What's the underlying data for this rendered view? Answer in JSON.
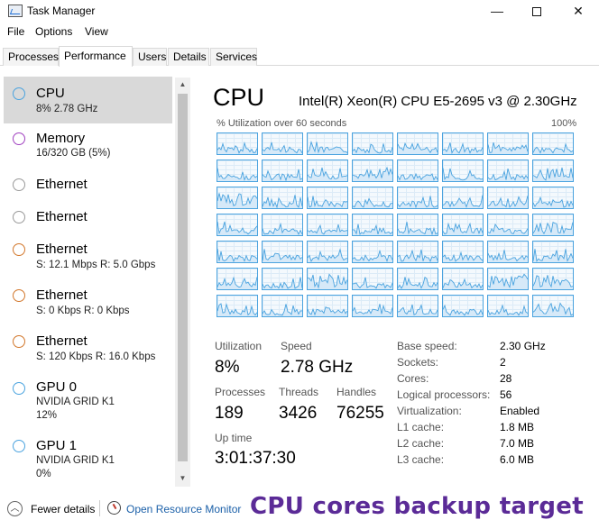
{
  "window": {
    "title": "Task Manager",
    "minimize": "—",
    "close": "✕"
  },
  "menu": [
    "File",
    "Options",
    "View"
  ],
  "tabs": [
    "Processes",
    "Performance",
    "Users",
    "Details",
    "Services"
  ],
  "active_tab": "Performance",
  "sidebar": {
    "items": [
      {
        "name": "CPU",
        "sub": "8% 2.78 GHz",
        "color": "#4aa3df",
        "selected": true
      },
      {
        "name": "Memory",
        "sub": "16/320 GB (5%)",
        "color": "#a040c0"
      },
      {
        "name": "Ethernet",
        "sub": "",
        "color": "#bdbdbd"
      },
      {
        "name": "Ethernet",
        "sub": "",
        "color": "#bdbdbd"
      },
      {
        "name": "Ethernet",
        "sub": "S: 12.1 Mbps  R: 5.0 Gbps",
        "color": "#d2772b"
      },
      {
        "name": "Ethernet",
        "sub": "S: 0 Kbps  R: 0 Kbps",
        "color": "#d2772b"
      },
      {
        "name": "Ethernet",
        "sub": "S: 120 Kbps  R: 16.0 Kbps",
        "color": "#d2772b"
      },
      {
        "name": "GPU 0",
        "sub": "NVIDIA GRID K1",
        "sub2": "12%",
        "color": "#4aa3df"
      },
      {
        "name": "GPU 1",
        "sub": "NVIDIA GRID K1",
        "sub2": "0%",
        "color": "#4aa3df"
      }
    ]
  },
  "cpu": {
    "heading": "CPU",
    "model": "Intel(R) Xeon(R) CPU E5-2695 v3 @ 2.30GHz",
    "graph_label": "% Utilization over 60 seconds",
    "graph_max": "100%",
    "accent_color": "#4aa3df"
  },
  "stats": {
    "utilization_label": "Utilization",
    "utilization": "8%",
    "speed_label": "Speed",
    "speed": "2.78 GHz",
    "processes_label": "Processes",
    "processes": "189",
    "threads_label": "Threads",
    "threads": "3426",
    "handles_label": "Handles",
    "handles": "76255",
    "uptime_label": "Up time",
    "uptime": "3:01:37:30"
  },
  "specs": [
    {
      "label": "Base speed:",
      "value": "2.30 GHz"
    },
    {
      "label": "Sockets:",
      "value": "2"
    },
    {
      "label": "Cores:",
      "value": "28"
    },
    {
      "label": "Logical processors:",
      "value": "56"
    },
    {
      "label": "Virtualization:",
      "value": "Enabled"
    },
    {
      "label": "L1 cache:",
      "value": "1.8 MB"
    },
    {
      "label": "L2 cache:",
      "value": "7.0 MB"
    },
    {
      "label": "L3 cache:",
      "value": "6.0 MB"
    }
  ],
  "bottom": {
    "fewer_details": "Fewer details",
    "resource_monitor": "Open Resource Monitor",
    "overlay": "CPU cores backup  target"
  }
}
